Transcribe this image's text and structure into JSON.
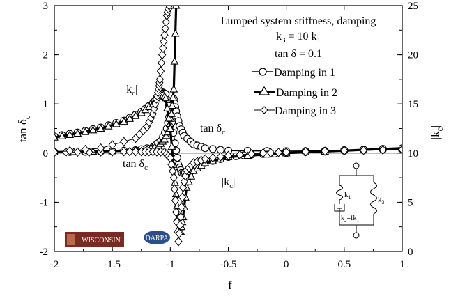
{
  "chart_data": {
    "type": "line",
    "title": "Lumped system stiffness, damping",
    "subtitle_lines": [
      "k₃ = 10 k₁",
      "tan δ = 0.1"
    ],
    "xlabel": "f",
    "ylabel_left": "tan δc",
    "ylabel_right": "|kc|",
    "xlim": [
      -2,
      1
    ],
    "ylim_left": [
      -2,
      3
    ],
    "ylim_right": [
      0,
      25
    ],
    "x_ticks": [
      "-2",
      "-1.5",
      "-1",
      "-0.5",
      "0",
      "0.5",
      "1"
    ],
    "y_left_ticks": [
      "-2",
      "-1",
      "0",
      "1",
      "2",
      "3"
    ],
    "y_right_ticks": [
      "0",
      "5",
      "10",
      "15",
      "20",
      "25"
    ],
    "grid": false,
    "legend_position": "top-right",
    "series": [
      {
        "name": "Damping in 1",
        "marker": "circle",
        "tan_delta": [
          [
            -2,
            0.02
          ],
          [
            -1.6,
            0.03
          ],
          [
            -1.3,
            0.06
          ],
          [
            -1.15,
            0.12
          ],
          [
            -1.08,
            0.25
          ],
          [
            -1.03,
            0.5
          ],
          [
            -1.0,
            0.85
          ],
          [
            -0.97,
            1.1
          ],
          [
            -0.95,
            0.85
          ],
          [
            -0.92,
            0.55
          ],
          [
            -0.88,
            0.35
          ],
          [
            -0.8,
            0.18
          ],
          [
            -0.7,
            0.1
          ],
          [
            -0.5,
            0.05
          ],
          [
            0,
            0.04
          ],
          [
            0.5,
            0.05
          ],
          [
            1,
            0.08
          ]
        ],
        "kc": [
          [
            -2,
            11.7
          ],
          [
            -1.8,
            12.1
          ],
          [
            -1.6,
            12.6
          ],
          [
            -1.4,
            13.3
          ],
          [
            -1.25,
            14.2
          ],
          [
            -1.15,
            15.1
          ],
          [
            -1.1,
            15.8
          ],
          [
            -1.07,
            16.2
          ],
          [
            -1.04,
            16.0
          ],
          [
            -1.0,
            14.2
          ],
          [
            -0.96,
            11.0
          ],
          [
            -0.93,
            8.8
          ],
          [
            -0.9,
            8.0
          ],
          [
            -0.86,
            8.0
          ],
          [
            -0.8,
            8.5
          ],
          [
            -0.7,
            9.0
          ],
          [
            -0.5,
            9.6
          ],
          [
            -0.3,
            9.85
          ],
          [
            0,
            10.0
          ],
          [
            0.5,
            10.3
          ],
          [
            1,
            10.5
          ]
        ]
      },
      {
        "name": "Damping in 2",
        "marker": "triangle",
        "tan_delta": [
          [
            -2,
            0.02
          ],
          [
            -1.5,
            0.04
          ],
          [
            -1.2,
            0.08
          ],
          [
            -1.1,
            0.15
          ],
          [
            -1.05,
            0.28
          ],
          [
            -1.01,
            0.5
          ],
          [
            -0.99,
            0.8
          ],
          [
            -0.97,
            1.3
          ],
          [
            -0.95,
            3.0
          ]
        ],
        "kc": [
          [
            -2,
            11.6
          ],
          [
            -1.8,
            12.0
          ],
          [
            -1.6,
            12.5
          ],
          [
            -1.4,
            13.2
          ],
          [
            -1.25,
            14.1
          ],
          [
            -1.15,
            15.0
          ],
          [
            -1.1,
            15.7
          ],
          [
            -1.07,
            16.1
          ],
          [
            -1.04,
            15.6
          ],
          [
            -1.0,
            12.5
          ],
          [
            -0.96,
            7.0
          ],
          [
            -0.93,
            3.5
          ],
          [
            -0.91,
            2.0
          ],
          [
            -0.89,
            3.5
          ],
          [
            -0.86,
            6.5
          ],
          [
            -0.8,
            8.2
          ],
          [
            -0.7,
            9.0
          ],
          [
            -0.5,
            9.6
          ],
          [
            0,
            10.0
          ],
          [
            1,
            10.5
          ]
        ]
      },
      {
        "name": "Damping in 3",
        "marker": "diamond",
        "tan_delta": [
          [
            -2,
            0.02
          ],
          [
            -1.7,
            0.02
          ],
          [
            -1.4,
            0.03
          ],
          [
            -1.25,
            0.03
          ],
          [
            -1.15,
            0.03
          ],
          [
            -1.05,
            0.02
          ],
          [
            -1.0,
            -0.1
          ],
          [
            -0.97,
            -0.5
          ],
          [
            -0.95,
            -1.2
          ],
          [
            -0.93,
            -1.8
          ],
          [
            -0.91,
            -1.3
          ],
          [
            -0.89,
            -0.7
          ],
          [
            -0.86,
            -0.35
          ],
          [
            -0.8,
            -0.2
          ],
          [
            -0.7,
            -0.12
          ],
          [
            -0.5,
            -0.05
          ],
          [
            -0.2,
            0.0
          ],
          [
            0,
            0.02
          ],
          [
            0.5,
            0.05
          ],
          [
            1,
            0.07
          ]
        ],
        "kc": [
          [
            -2,
            10.1
          ],
          [
            -1.6,
            10.5
          ],
          [
            -1.3,
            11.5
          ],
          [
            -1.2,
            12.7
          ],
          [
            -1.15,
            14.0
          ],
          [
            -1.12,
            15.5
          ],
          [
            -1.1,
            16.5
          ],
          [
            -1.09,
            17.5
          ],
          [
            -1.07,
            20.0
          ],
          [
            -1.05,
            22.0
          ],
          [
            -1.03,
            24.0
          ],
          [
            -1.01,
            25.0
          ]
        ]
      }
    ],
    "annotations": {
      "kc_upper": "|kc|",
      "tan_upper": "tan δc",
      "tan_lower": "tan δc",
      "kc_lower": "|kc|"
    },
    "inset": {
      "k1": "k₁",
      "k2": "k₂=fk₁",
      "k3": "k₃"
    },
    "logos": {
      "wisconsin": "WISCONSIN",
      "darpa": "DARPA"
    }
  }
}
